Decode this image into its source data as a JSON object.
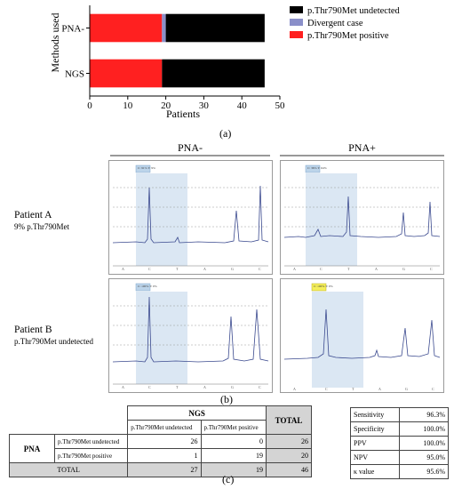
{
  "chart_data": {
    "type": "bar",
    "orientation": "horizontal",
    "stacked": true,
    "categories": [
      "PNA-",
      "NGS"
    ],
    "series": [
      {
        "name": "p.Thr790Met positive",
        "color": "#ff2020",
        "values": [
          19,
          19
        ]
      },
      {
        "name": "Divergent case",
        "color": "#8a8fc9",
        "values": [
          1,
          0
        ]
      },
      {
        "name": "p.Thr790Met undetected",
        "color": "#000000",
        "values": [
          26,
          27
        ]
      }
    ],
    "xlabel": "Patients",
    "ylabel": "Methods used",
    "xlim": [
      0,
      50
    ],
    "xticks": [
      "0",
      "10",
      "20",
      "30",
      "40",
      "50"
    ],
    "legend_order": [
      "p.Thr790Met undetected",
      "Divergent case",
      "p.Thr790Met positive"
    ],
    "legend_position": "right",
    "grid": false
  },
  "labels": {
    "a": "(a)",
    "b": "(b)",
    "c": "(c)"
  },
  "chromatograms": {
    "col_minus": "PNA-",
    "col_plus": "PNA+",
    "patient_a_name": "Patient A",
    "patient_a_detail": "9% p.Thr790Met",
    "patient_b_name": "Patient B",
    "patient_b_detail": "p.Thr790Met undetected",
    "box_minus_a": "C: 91%\nT: 9%",
    "box_plus_a": "C: 36%\nT: 64%",
    "box_minus_b": "C: 100%\nT: 0%",
    "box_plus_b": "C: 100%\nT: 0%",
    "axis_letters": [
      "A",
      "C",
      "T",
      "A",
      "G",
      "C"
    ]
  },
  "comparison_table": {
    "ngs_header": "NGS",
    "total_header": "TOTAL",
    "pna_label": "PNA",
    "col_undetected": "p.Thr790Met undetected",
    "col_positive": "p.Thr790Met positive",
    "row_undetected": {
      "label": "p.Thr790Met undetected",
      "undetected": "26",
      "positive": "0",
      "total": "26"
    },
    "row_positive": {
      "label": "p.Thr790Met positive",
      "undetected": "1",
      "positive": "19",
      "total": "20"
    },
    "row_total": {
      "label": "TOTAL",
      "undetected": "27",
      "positive": "19",
      "total": "46"
    }
  },
  "stats_table": [
    {
      "label": "Sensitivity",
      "value": "96.3%"
    },
    {
      "label": "Specificity",
      "value": "100.0%"
    },
    {
      "label": "PPV",
      "value": "100.0%"
    },
    {
      "label": "NPV",
      "value": "95.0%"
    },
    {
      "label": "κ value",
      "value": "95.6%"
    }
  ]
}
